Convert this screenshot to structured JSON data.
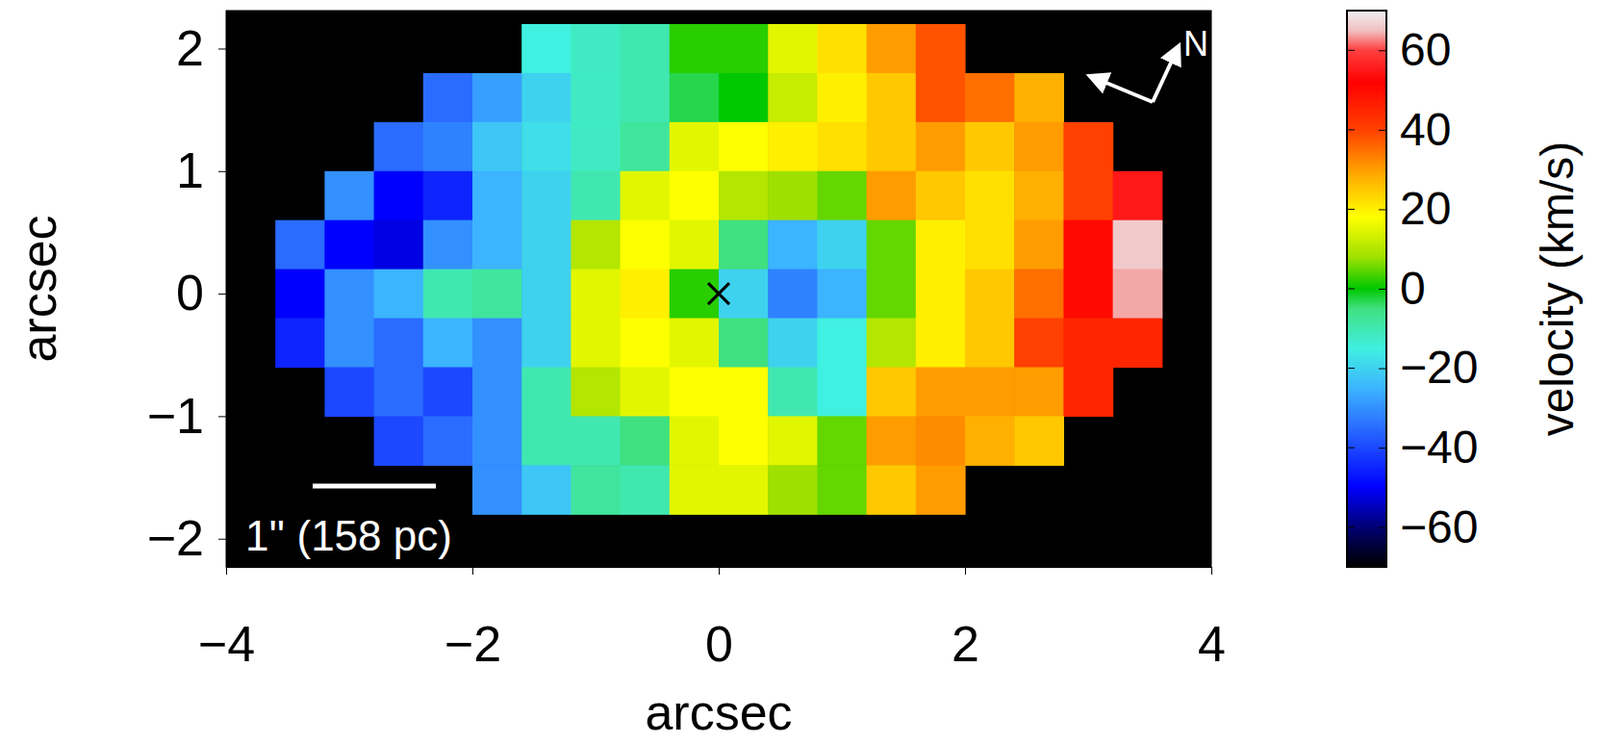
{
  "chart_data": {
    "type": "heatmap",
    "x": [
      -3.4,
      -3.0,
      -2.6,
      -2.2,
      -1.8,
      -1.4,
      -1.0,
      -0.6,
      -0.2,
      0.2,
      0.6,
      1.0,
      1.4,
      1.8,
      2.2,
      2.6,
      3.0,
      3.4
    ],
    "y": [
      2.0,
      1.6,
      1.2,
      0.8,
      0.4,
      0.0,
      -0.4,
      -0.8,
      -1.2,
      -1.6
    ],
    "values": [
      [
        null,
        null,
        null,
        null,
        null,
        -15,
        -12,
        -10,
        2,
        2,
        15,
        22,
        30,
        38,
        null,
        null,
        null,
        null
      ],
      [
        null,
        null,
        null,
        -35,
        -28,
        -20,
        -12,
        -10,
        -3,
        0,
        12,
        20,
        25,
        38,
        35,
        28,
        null,
        null
      ],
      [
        null,
        null,
        -35,
        -32,
        -22,
        -18,
        -12,
        -8,
        15,
        18,
        20,
        22,
        25,
        30,
        25,
        30,
        40,
        null
      ],
      [
        null,
        -30,
        -50,
        -45,
        -25,
        -20,
        -10,
        15,
        18,
        10,
        8,
        5,
        30,
        25,
        22,
        28,
        40,
        55
      ],
      [
        -35,
        -50,
        -52,
        -30,
        -25,
        -20,
        10,
        18,
        15,
        -5,
        -25,
        -20,
        5,
        20,
        22,
        30,
        50,
        66
      ],
      [
        -50,
        -30,
        -25,
        -10,
        -8,
        -20,
        15,
        20,
        2,
        -20,
        -32,
        -25,
        5,
        20,
        25,
        35,
        50,
        64
      ],
      [
        -45,
        -30,
        -35,
        -25,
        -30,
        -20,
        15,
        18,
        15,
        -5,
        -20,
        -15,
        10,
        20,
        25,
        40,
        45,
        45
      ],
      [
        null,
        -40,
        -35,
        -40,
        -30,
        -10,
        10,
        15,
        18,
        18,
        -10,
        -15,
        25,
        30,
        30,
        30,
        45,
        null
      ],
      [
        null,
        null,
        -40,
        -35,
        -30,
        -10,
        -10,
        -5,
        15,
        18,
        15,
        5,
        30,
        32,
        28,
        25,
        null,
        null
      ],
      [
        null,
        null,
        null,
        null,
        -30,
        -22,
        -8,
        -10,
        15,
        15,
        8,
        5,
        25,
        30,
        null,
        null,
        null,
        null
      ]
    ],
    "xlim": [
      -4,
      4
    ],
    "ylim": [
      -2.23,
      2.31
    ],
    "xticks": [
      {
        "value": -4,
        "label": "−4"
      },
      {
        "value": -2,
        "label": "−2"
      },
      0,
      2,
      4
    ],
    "yticks": [
      {
        "value": -2,
        "label": "−2"
      },
      {
        "value": -1,
        "label": "−1"
      },
      0,
      1,
      2
    ],
    "x_label": "arcsec",
    "y_label": "arcsec",
    "colorbar": {
      "range": [
        -70,
        70
      ],
      "ticks": [
        {
          "value": -60,
          "label": "−60"
        },
        {
          "value": -40,
          "label": "−40"
        },
        {
          "value": -20,
          "label": "−20"
        },
        0,
        20,
        40,
        60
      ],
      "label": "velocity (km/s)"
    },
    "scale_bar": {
      "label": "1'' (158 pc)",
      "length": 1
    },
    "compass_label": "N",
    "nucleus": {
      "x": 0,
      "y": 0,
      "marker": "x"
    }
  }
}
